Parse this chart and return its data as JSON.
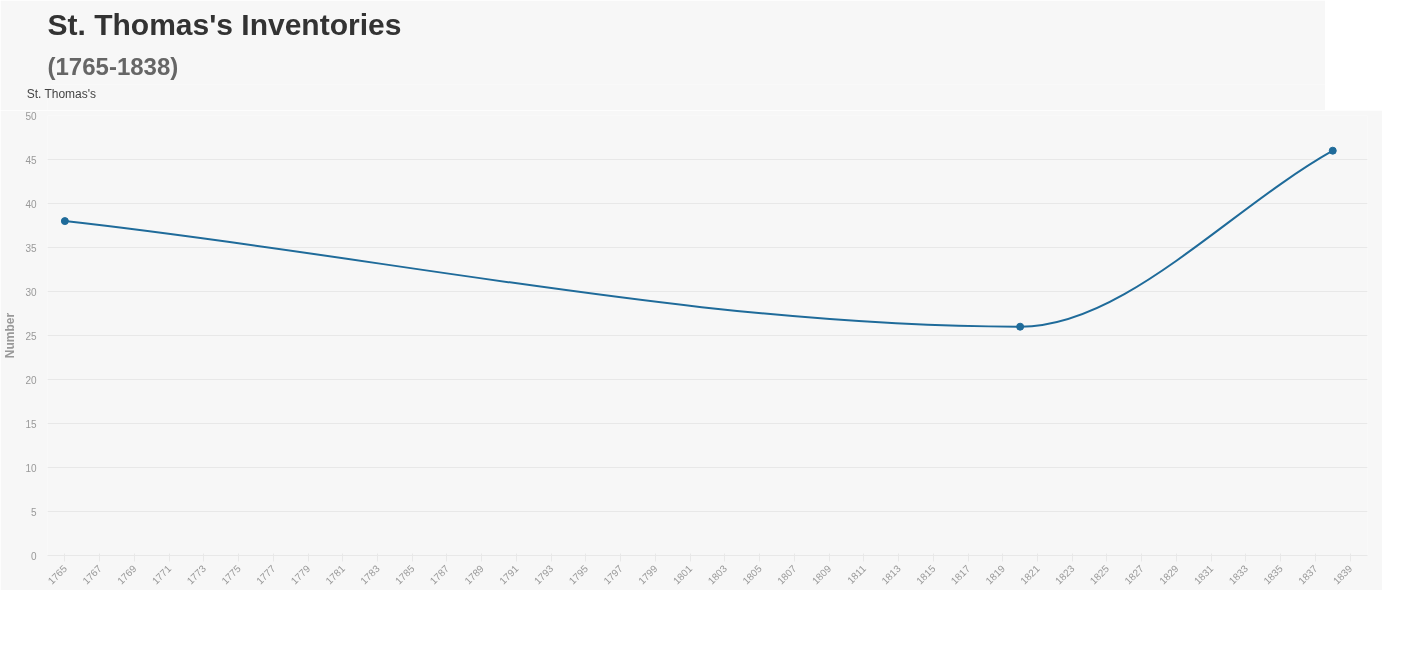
{
  "chart_data": {
    "type": "line",
    "title": "St. Thomas's Inventories",
    "subtitle": "(1765-1838)",
    "ylabel": "Number",
    "x": [
      1765,
      1820,
      1838
    ],
    "series": [
      {
        "name": "St. Thomas's",
        "color": "#1f6b9a",
        "values": [
          38,
          26,
          46
        ]
      }
    ],
    "xlim": [
      1764,
      1840
    ],
    "xticks": [
      1765,
      1767,
      1769,
      1771,
      1773,
      1775,
      1777,
      1779,
      1781,
      1783,
      1785,
      1787,
      1789,
      1791,
      1793,
      1795,
      1797,
      1799,
      1801,
      1803,
      1805,
      1807,
      1809,
      1811,
      1813,
      1815,
      1817,
      1819,
      1821,
      1823,
      1825,
      1827,
      1829,
      1831,
      1833,
      1835,
      1837,
      1839
    ],
    "ylim": [
      0,
      50
    ],
    "yticks": [
      0,
      5,
      10,
      15,
      20,
      25,
      30,
      35,
      40,
      45,
      50
    ],
    "grid": "y",
    "legend": "top left",
    "marker": "circle",
    "line_style": "solid"
  }
}
